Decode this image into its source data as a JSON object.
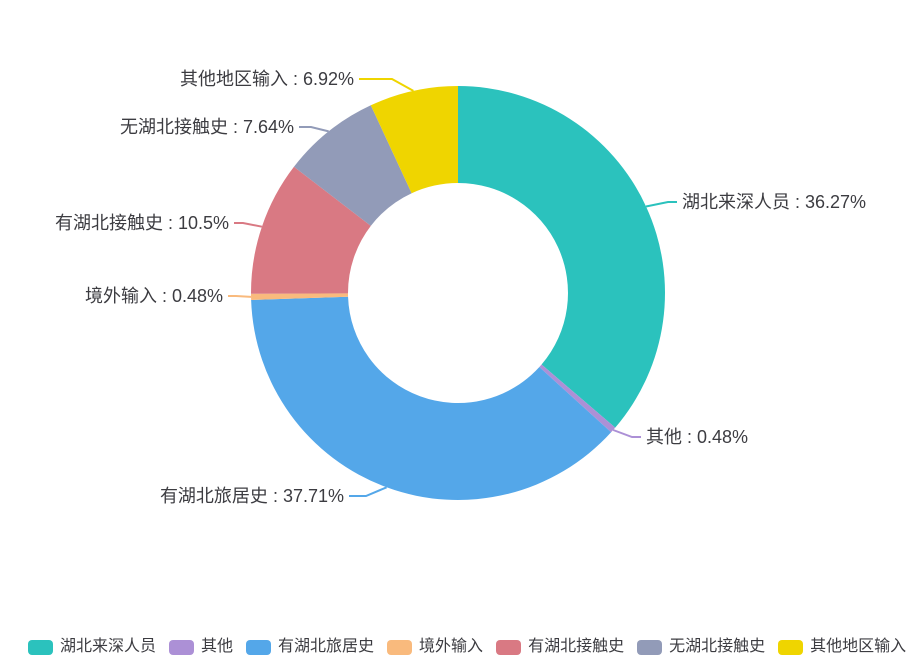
{
  "chart_data": {
    "type": "pie",
    "subtype": "donut",
    "title": "",
    "unit": "%",
    "label_separator": " : ",
    "start_angle_deg_from_top": 0,
    "clockwise": true,
    "inner_radius_ratio": 0.53,
    "legend_position": "bottom",
    "background": "#ffffff",
    "label_text_color": "#3C3C41",
    "series": [
      {
        "name": "湖北来深人员",
        "value": 36.27,
        "label": "湖北来深人员 : 36.27%",
        "color": "#2BC2BD"
      },
      {
        "name": "其他",
        "value": 0.48,
        "label": "其他 : 0.48%",
        "color": "#AC90D6"
      },
      {
        "name": "有湖北旅居史",
        "value": 37.71,
        "label": "有湖北旅居史 : 37.71%",
        "color": "#54A7E9"
      },
      {
        "name": "境外输入",
        "value": 0.48,
        "label": "境外输入 : 0.48%",
        "color": "#F9BA7D"
      },
      {
        "name": "有湖北接触史",
        "value": 10.5,
        "label": "有湖北接触史 : 10.5%",
        "color": "#D97983"
      },
      {
        "name": "无湖北接触史",
        "value": 7.64,
        "label": "无湖北接触史 : 7.64%",
        "color": "#929BB8"
      },
      {
        "name": "其他地区输入",
        "value": 6.92,
        "label": "其他地区输入 : 6.92%",
        "color": "#EFD500"
      }
    ]
  }
}
